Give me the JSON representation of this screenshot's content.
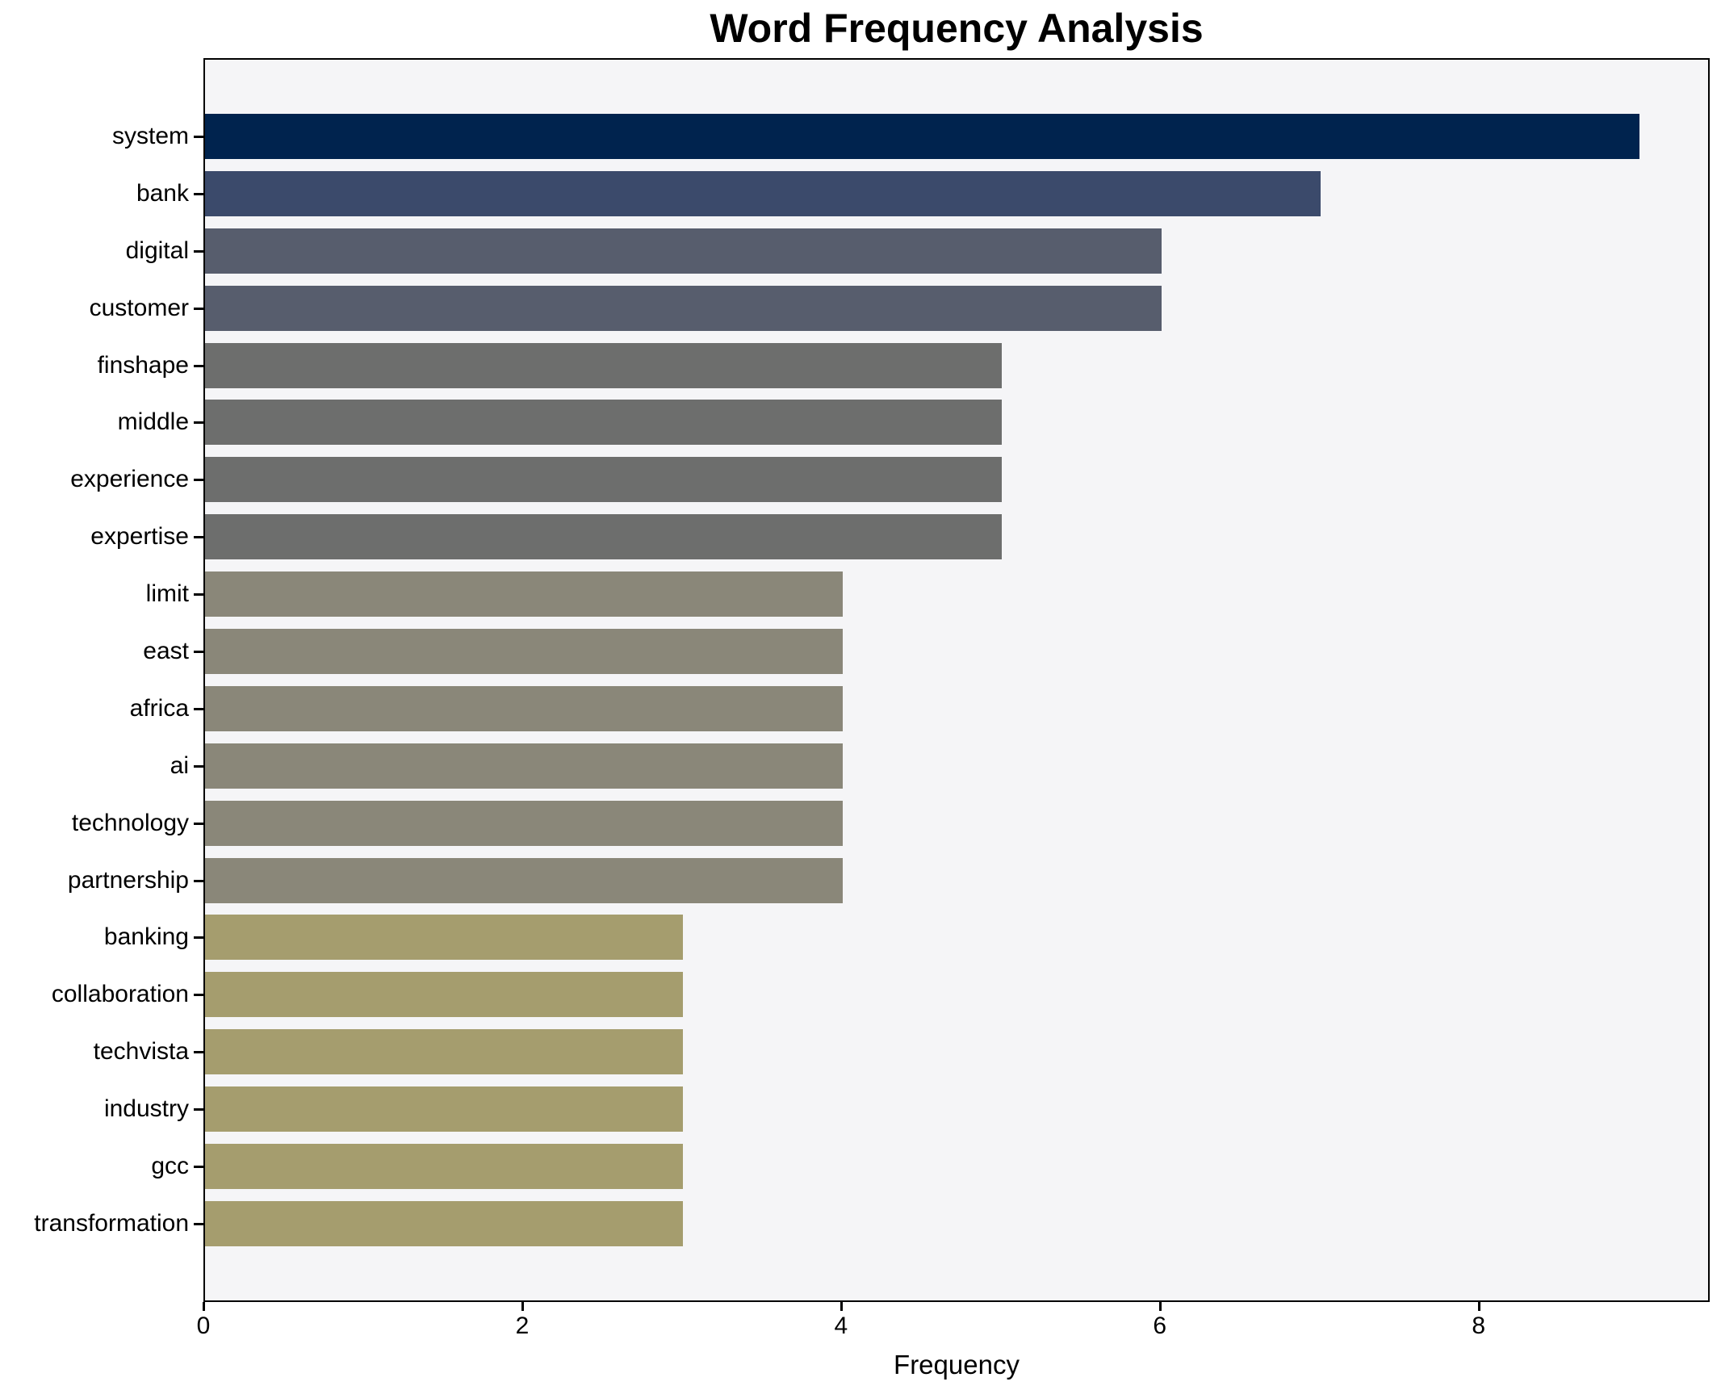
{
  "chart_data": {
    "type": "bar",
    "orientation": "horizontal",
    "title": "Word Frequency Analysis",
    "xlabel": "Frequency",
    "ylabel": "",
    "categories": [
      "system",
      "bank",
      "digital",
      "customer",
      "finshape",
      "middle",
      "experience",
      "expertise",
      "limit",
      "east",
      "africa",
      "ai",
      "technology",
      "partnership",
      "banking",
      "collaboration",
      "techvista",
      "industry",
      "gcc",
      "transformation"
    ],
    "values": [
      9,
      7,
      6,
      6,
      5,
      5,
      5,
      5,
      4,
      4,
      4,
      4,
      4,
      4,
      3,
      3,
      3,
      3,
      3,
      3
    ],
    "bar_colors": [
      "#00234e",
      "#3b4a6b",
      "#575d6d",
      "#575d6d",
      "#6d6e6d",
      "#6d6e6d",
      "#6d6e6d",
      "#6d6e6d",
      "#8a8779",
      "#8a8779",
      "#8a8779",
      "#8a8779",
      "#8a8779",
      "#8a8779",
      "#a59d6e",
      "#a59d6e",
      "#a59d6e",
      "#a59d6e",
      "#a59d6e",
      "#a59d6e"
    ],
    "xlim": [
      0,
      9.45
    ],
    "xticks": [
      0,
      2,
      4,
      6,
      8
    ],
    "grid": false,
    "legend": null,
    "plot_background": "#f5f5f7",
    "figure_background": "#ffffff",
    "frame_color": "#000000",
    "text_color": "#000000"
  }
}
